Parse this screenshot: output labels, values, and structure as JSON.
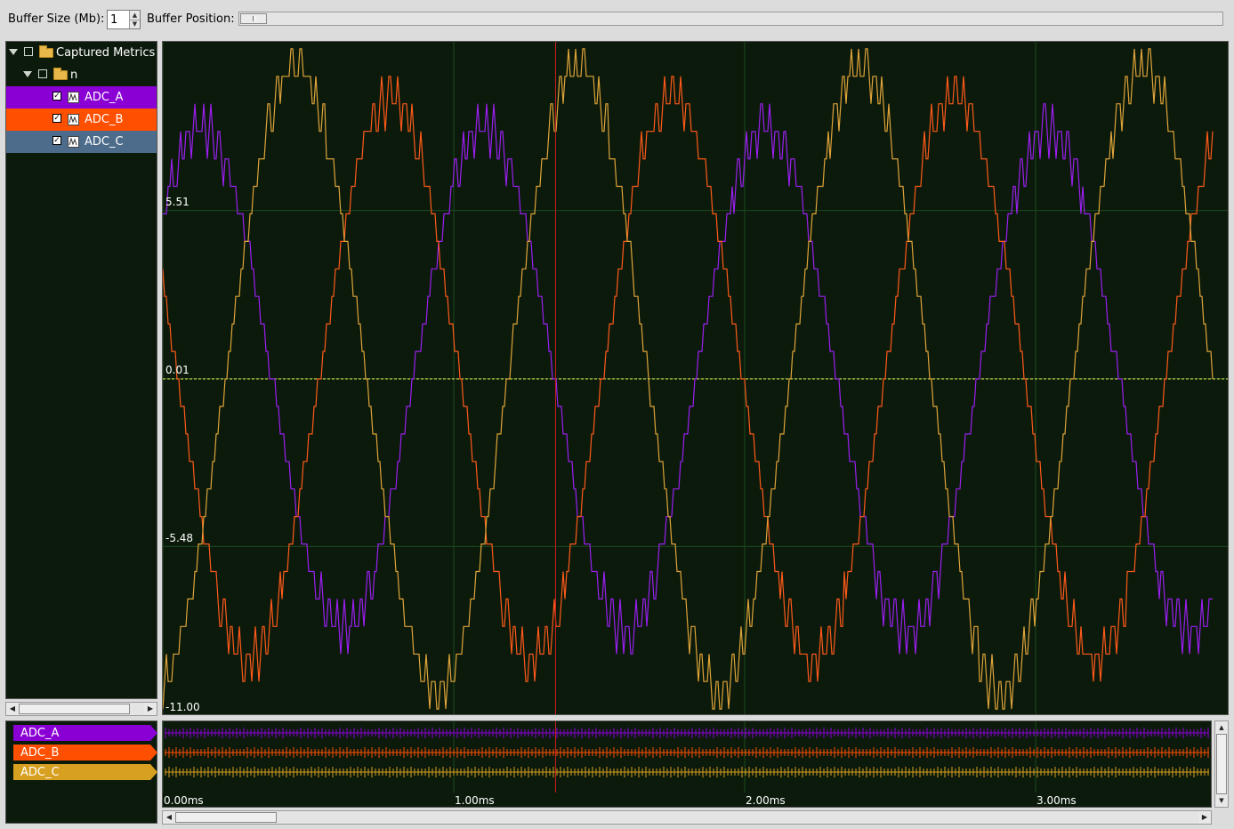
{
  "toolbar": {
    "buffer_size_label": "Buffer Size (Mb):",
    "buffer_size_value": "1",
    "buffer_position_label": "Buffer Position:"
  },
  "tree": {
    "root_label": "Captured Metrics",
    "group_label": "n",
    "signals": [
      {
        "label": "ADC_A",
        "checked": true,
        "color": "#8a00d4"
      },
      {
        "label": "ADC_B",
        "checked": true,
        "color": "#ff4f00"
      },
      {
        "label": "ADC_C",
        "checked": true,
        "color": "#4d6b8a"
      }
    ]
  },
  "plot": {
    "y_labels": [
      "5.51",
      "0.01",
      "-5.48",
      "-11.00"
    ],
    "background": "#0b1a0b",
    "gridline_color": "#1e4a1e",
    "zero_line_color": "#e8e84a",
    "cursor_color": "#d02020"
  },
  "overview": {
    "legend": [
      {
        "label": "ADC_A",
        "color": "#8a00d4"
      },
      {
        "label": "ADC_B",
        "color": "#ff4f00"
      },
      {
        "label": "ADC_C",
        "color": "#d8a020"
      }
    ],
    "time_labels": [
      "0.00ms",
      "1.00ms",
      "2.00ms",
      "3.00ms"
    ]
  },
  "chart_data": {
    "type": "line",
    "xlabel": "",
    "ylabel": "",
    "x_unit": "ms",
    "xlim": [
      0,
      3.6
    ],
    "ylim": [
      -11.0,
      11.0
    ],
    "y_ticks": [
      5.51,
      0.01,
      -5.48,
      -11.0
    ],
    "x_ticks": [
      0.0,
      1.0,
      2.0,
      3.0
    ],
    "cursor_x": 1.35,
    "series": [
      {
        "name": "ADC_A",
        "color": "#9b1ff0",
        "period_ms": 0.97,
        "amplitude": 8.2,
        "phase_deg": 40
      },
      {
        "name": "ADC_B",
        "color": "#ff5a1a",
        "period_ms": 0.97,
        "amplitude": 9.2,
        "phase_deg": 160
      },
      {
        "name": "ADC_C",
        "color": "#e0a43a",
        "period_ms": 0.97,
        "amplitude": 10.2,
        "phase_deg": 280
      }
    ]
  }
}
